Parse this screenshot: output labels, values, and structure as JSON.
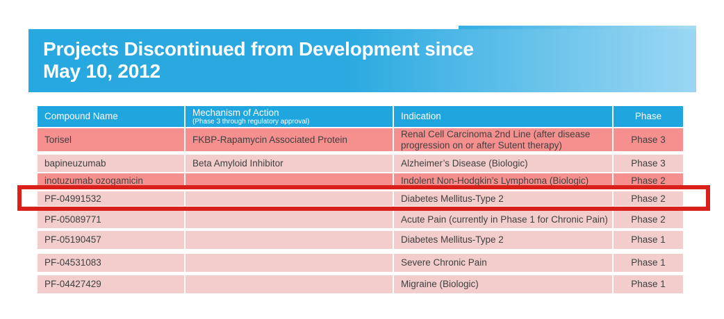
{
  "slide": {
    "title_line1": "Projects Discontinued from Development since",
    "title_line2": "May 10, 2012"
  },
  "table": {
    "columns": [
      {
        "label": "Compound Name",
        "sub": ""
      },
      {
        "label": "Mechanism of Action",
        "sub": "(Phase 3 through regulatory approval)"
      },
      {
        "label": "Indication",
        "sub": ""
      },
      {
        "label": "Phase",
        "sub": ""
      }
    ],
    "rows": [
      {
        "compound": "Torisel",
        "mechanism": "FKBP-Rapamycin Associated Protein",
        "indication": "Renal Cell Carcinoma 2nd Line (after disease progression on or after Sutent therapy)",
        "phase": "Phase 3",
        "tone": "dark",
        "highlighted": false
      },
      {
        "compound": "bapineuzumab",
        "mechanism": "Beta Amyloid Inhibitor",
        "indication": "Alzheimer’s Disease (Biologic)",
        "phase": "Phase 3",
        "tone": "light",
        "highlighted": false
      },
      {
        "compound": "inotuzumab ozogamicin",
        "mechanism": "",
        "indication": "Indolent Non-Hodgkin’s Lymphoma (Biologic)",
        "phase": "Phase 2",
        "tone": "dark",
        "highlighted": false
      },
      {
        "compound": "PF-04991532",
        "mechanism": "",
        "indication": "Diabetes Mellitus-Type 2",
        "phase": "Phase 2",
        "tone": "light",
        "highlighted": true
      },
      {
        "compound": "PF-05089771",
        "mechanism": "",
        "indication": "Acute Pain (currently in Phase 1 for Chronic Pain)",
        "phase": "Phase 2",
        "tone": "light",
        "highlighted": false
      },
      {
        "compound": "PF-05190457",
        "mechanism": "",
        "indication": "Diabetes Mellitus-Type 2",
        "phase": "Phase 1",
        "tone": "light",
        "highlighted": false
      },
      {
        "compound": "PF-04531083",
        "mechanism": "",
        "indication": "Severe Chronic Pain",
        "phase": "Phase 1",
        "tone": "light",
        "highlighted": false
      },
      {
        "compound": "PF-04427429",
        "mechanism": "",
        "indication": "Migraine (Biologic)",
        "phase": "Phase 1",
        "tone": "light",
        "highlighted": false
      }
    ]
  },
  "colors": {
    "header_blue": "#1fa6df",
    "banner_blue_left": "#28a8e0",
    "banner_blue_right": "#9bd7f3",
    "row_dark": "#f5908f",
    "row_light": "#f2cdcb",
    "highlight_red": "#d9201a",
    "row_text": "#3f3f3f"
  }
}
